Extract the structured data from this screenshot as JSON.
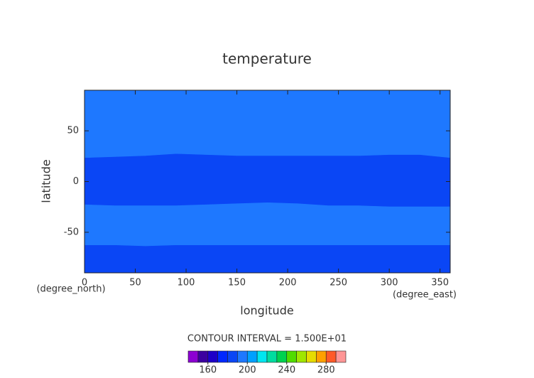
{
  "chart_data": {
    "type": "contour",
    "title": "temperature",
    "x_label": "longitude",
    "y_label": "latitude",
    "x_unit": "(degree_east)",
    "y_unit": "(degree_north)",
    "x": [
      0,
      30,
      60,
      90,
      120,
      150,
      180,
      210,
      240,
      270,
      300,
      330,
      360
    ],
    "contours": [
      {
        "values": [
          23,
          24,
          25,
          27,
          26,
          25,
          25,
          25,
          25,
          25,
          26,
          26,
          23
        ]
      },
      {
        "values": [
          -23,
          -24,
          -24,
          -24,
          -23,
          -22,
          -21,
          -22,
          -24,
          -24,
          -25,
          -25,
          -25
        ]
      },
      {
        "values": [
          -63,
          -63,
          -64,
          -63,
          -63,
          -63,
          -63,
          -63,
          -63,
          -63,
          -63,
          -63,
          -63
        ]
      }
    ],
    "band_colors": [
      "#1e78ff",
      "#0a46f5",
      "#1e78ff",
      "#0a46f5"
    ],
    "xlim": [
      0,
      360
    ],
    "ylim": [
      -90,
      90
    ],
    "xticks": [
      0,
      50,
      100,
      150,
      200,
      250,
      300,
      350
    ],
    "yticks": [
      -50,
      0,
      50
    ],
    "annotation": "CONTOUR INTERVAL = 1.500E+01",
    "colorbar_lim": [
      140,
      300
    ],
    "colorbar_ticks": [
      160,
      200,
      240,
      280
    ],
    "colorbar_colors": [
      "#8c00d2",
      "#3c00a0",
      "#1e00c8",
      "#0028ff",
      "#0a46f5",
      "#1e78ff",
      "#00a0ff",
      "#00e6f0",
      "#00dca0",
      "#00d250",
      "#50dc00",
      "#a0e600",
      "#e6dc00",
      "#ffa000",
      "#ff5a28",
      "#ff9696"
    ]
  }
}
